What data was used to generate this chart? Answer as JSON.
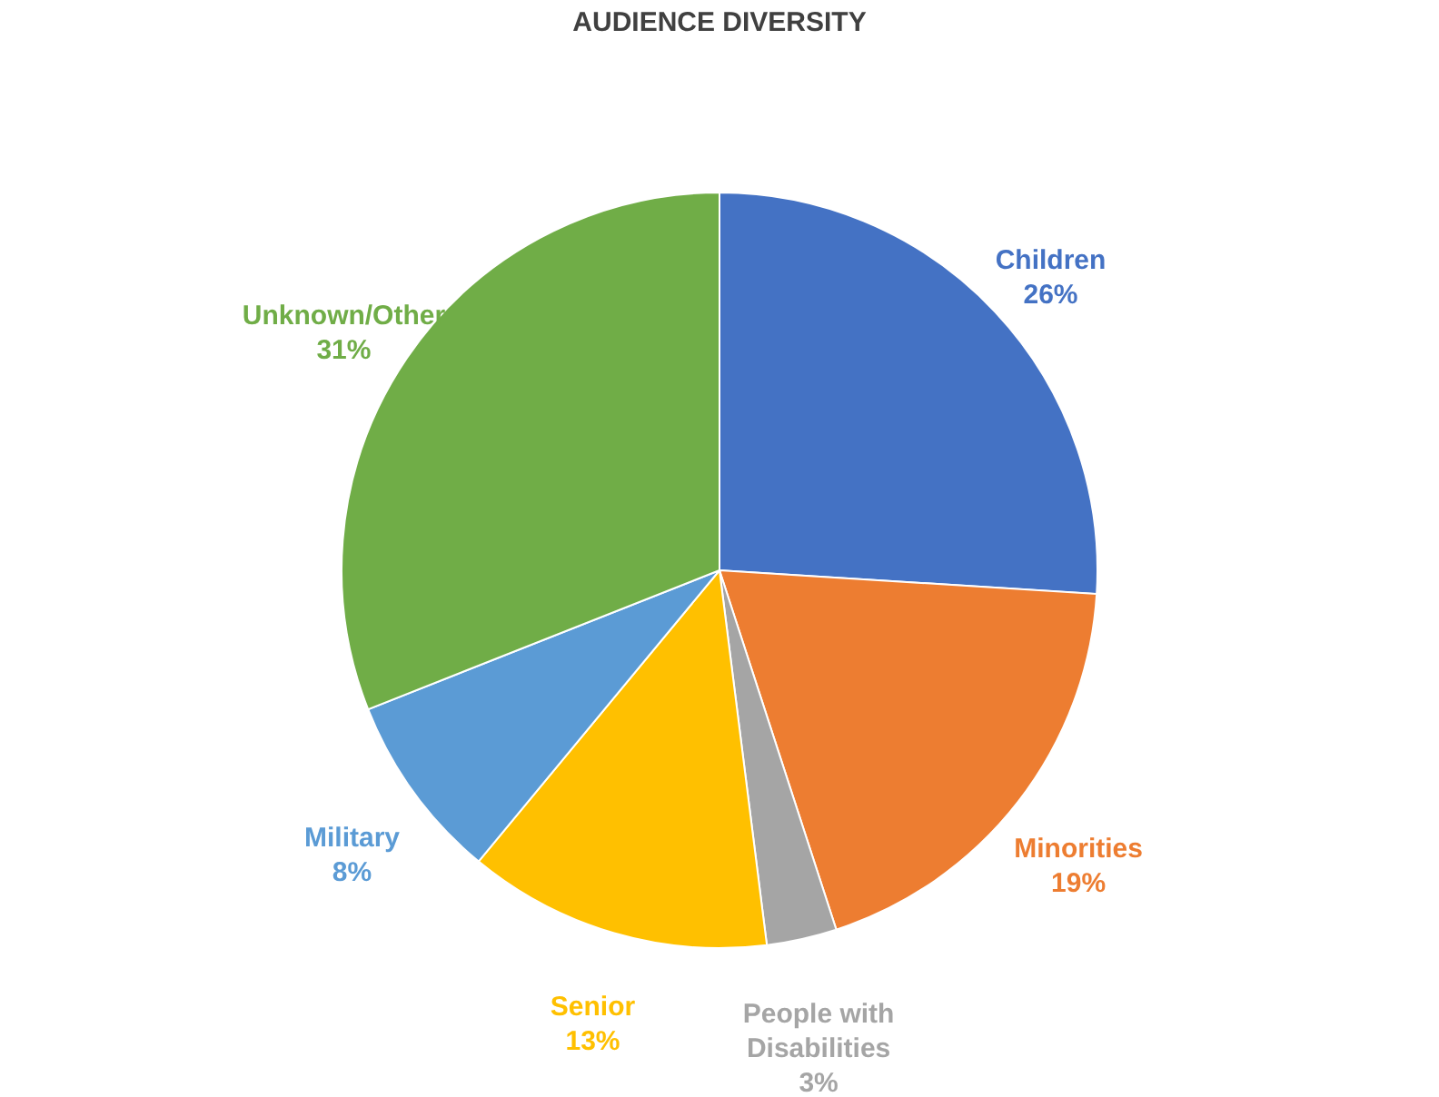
{
  "chart_data": {
    "type": "pie",
    "title": "AUDIENCE DIVERSITY",
    "categories": [
      "Children",
      "Minorities",
      "People with Disabilities",
      "Senior",
      "Military",
      "Unknown/Other"
    ],
    "values": [
      26,
      19,
      3,
      13,
      8,
      31
    ],
    "colors": [
      "#4472c4",
      "#ed7d31",
      "#a5a5a5",
      "#ffc000",
      "#5b9bd5",
      "#70ad47"
    ],
    "value_labels": [
      "26%",
      "19%",
      "3%",
      "13%",
      "8%",
      "31%"
    ],
    "legend": false
  }
}
